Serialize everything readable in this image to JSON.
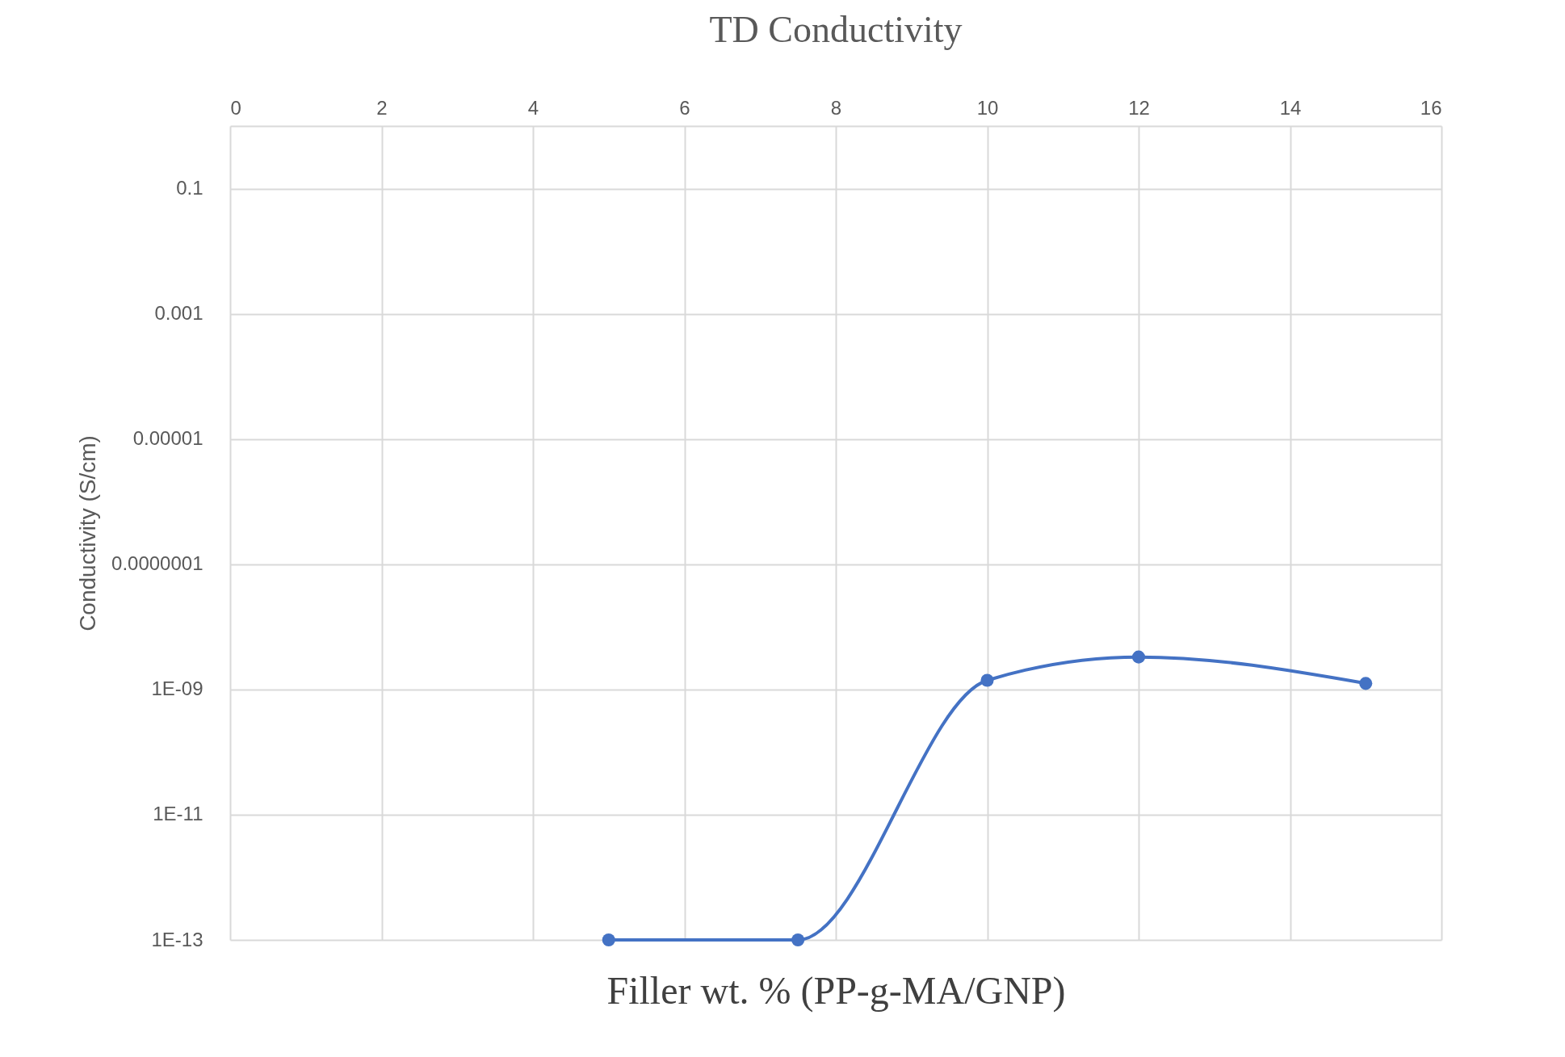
{
  "chart_data": {
    "type": "line",
    "title": "TD Conductivity",
    "xlabel": "Filler wt. % (PP-g-MA/GNP)",
    "ylabel": "Conductivity (S/cm)",
    "x": [
      5,
      7.5,
      10,
      12,
      15
    ],
    "series": [
      {
        "color": "#4472c4",
        "values": [
          1e-13,
          1e-13,
          1.4e-09,
          3.3e-09,
          1.25e-09
        ]
      }
    ],
    "xlim": [
      0,
      16
    ],
    "xticks": [
      0,
      2,
      4,
      6,
      8,
      10,
      12,
      14,
      16
    ],
    "ylim": [
      1e-13,
      1
    ],
    "yticks": [
      {
        "value": 1e-13,
        "label": "1E-13"
      },
      {
        "value": 1e-11,
        "label": "1E-11"
      },
      {
        "value": 1e-09,
        "label": "1E-09"
      },
      {
        "value": 1e-07,
        "label": "0.0000001"
      },
      {
        "value": 1e-05,
        "label": "0.00001"
      },
      {
        "value": 0.001,
        "label": "0.001"
      },
      {
        "value": 0.1,
        "label": "0.1"
      }
    ],
    "log": "y",
    "grid": true,
    "marker": "circle",
    "line_style": "solid"
  }
}
